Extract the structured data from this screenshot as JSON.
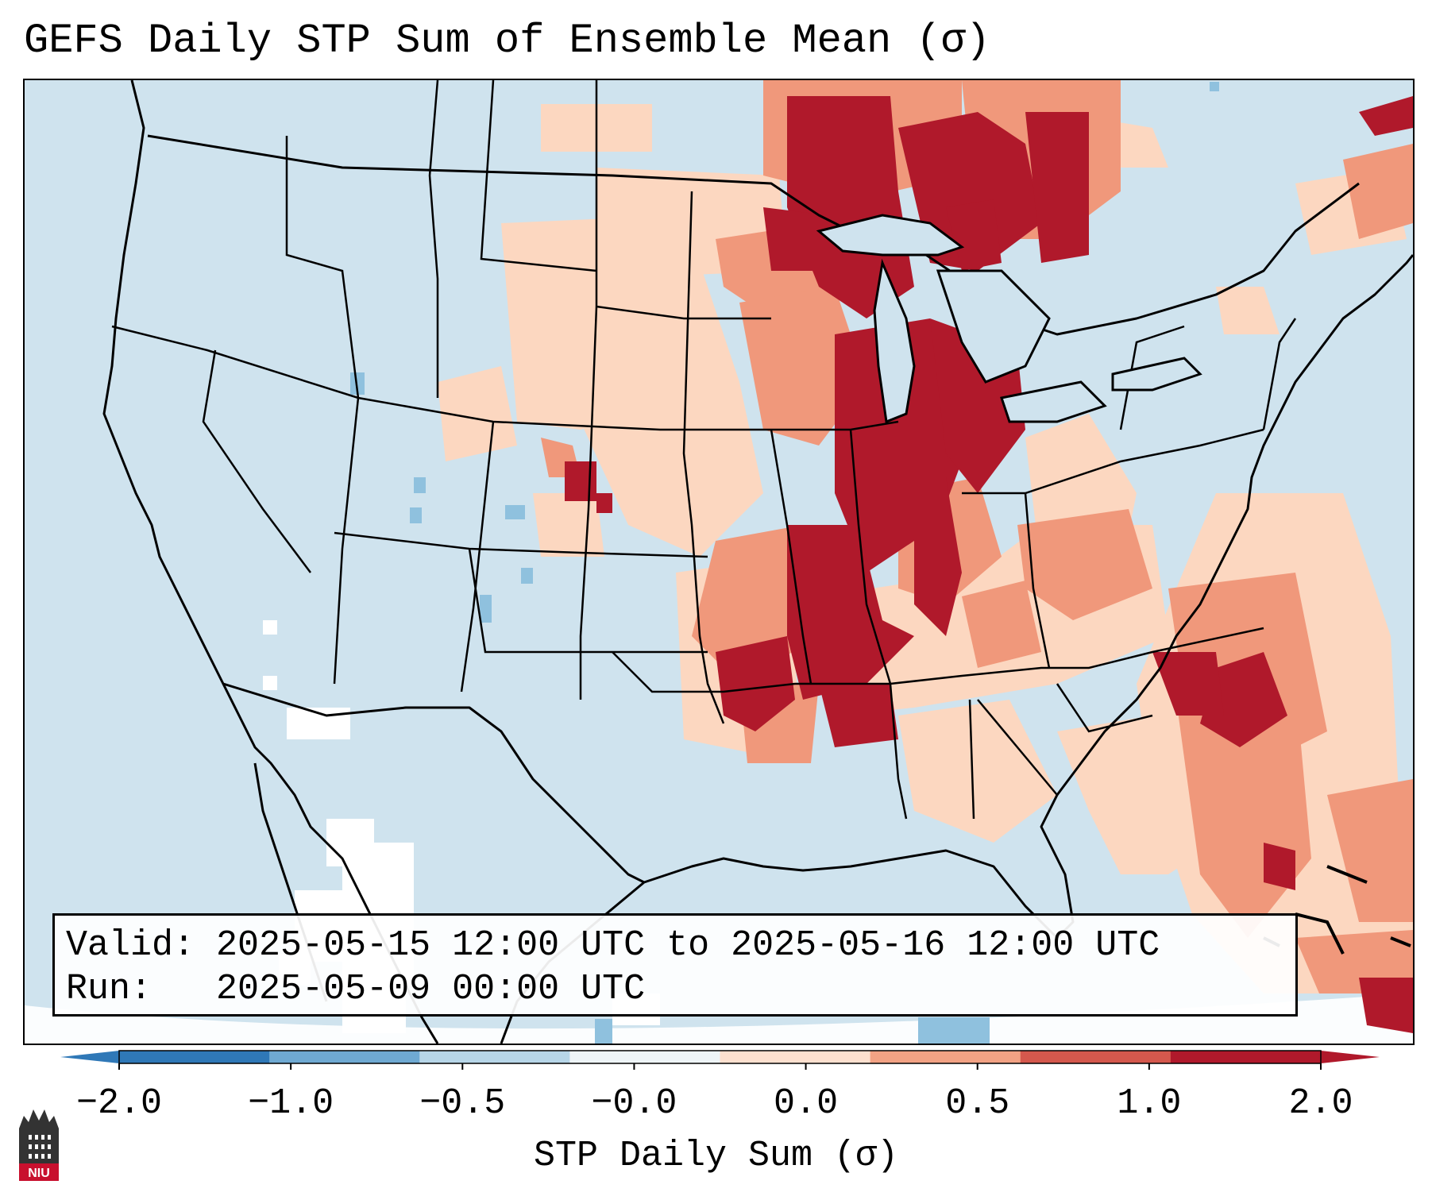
{
  "title": "GEFS Daily STP Sum of Ensemble Mean (σ)",
  "info": {
    "valid_label": "Valid:",
    "valid_value": "2025-05-15 12:00 UTC to 2025-05-16 12:00 UTC",
    "run_label": "Run:",
    "run_value": "2025-05-09 00:00 UTC"
  },
  "colorbar": {
    "label": "STP Daily Sum (σ)",
    "ticks": [
      "−2.0",
      "−1.0",
      "−0.5",
      "−0.0",
      "0.0",
      "0.5",
      "1.0",
      "2.0"
    ],
    "colors": [
      "#2f78b7",
      "#6fa9d2",
      "#b7d6e8",
      "#eef4f7",
      "#fde0cf",
      "#f2a284",
      "#d4584d",
      "#b0192b"
    ],
    "extend_low_color": "#2f78b7",
    "extend_high_color": "#b0192b"
  },
  "logo": {
    "text": "NIU",
    "color": "#c8102e"
  },
  "map": {
    "ocean_color": "#cfe3ee",
    "land_color": "#cfe3ee",
    "boundary_color": "#000000"
  }
}
